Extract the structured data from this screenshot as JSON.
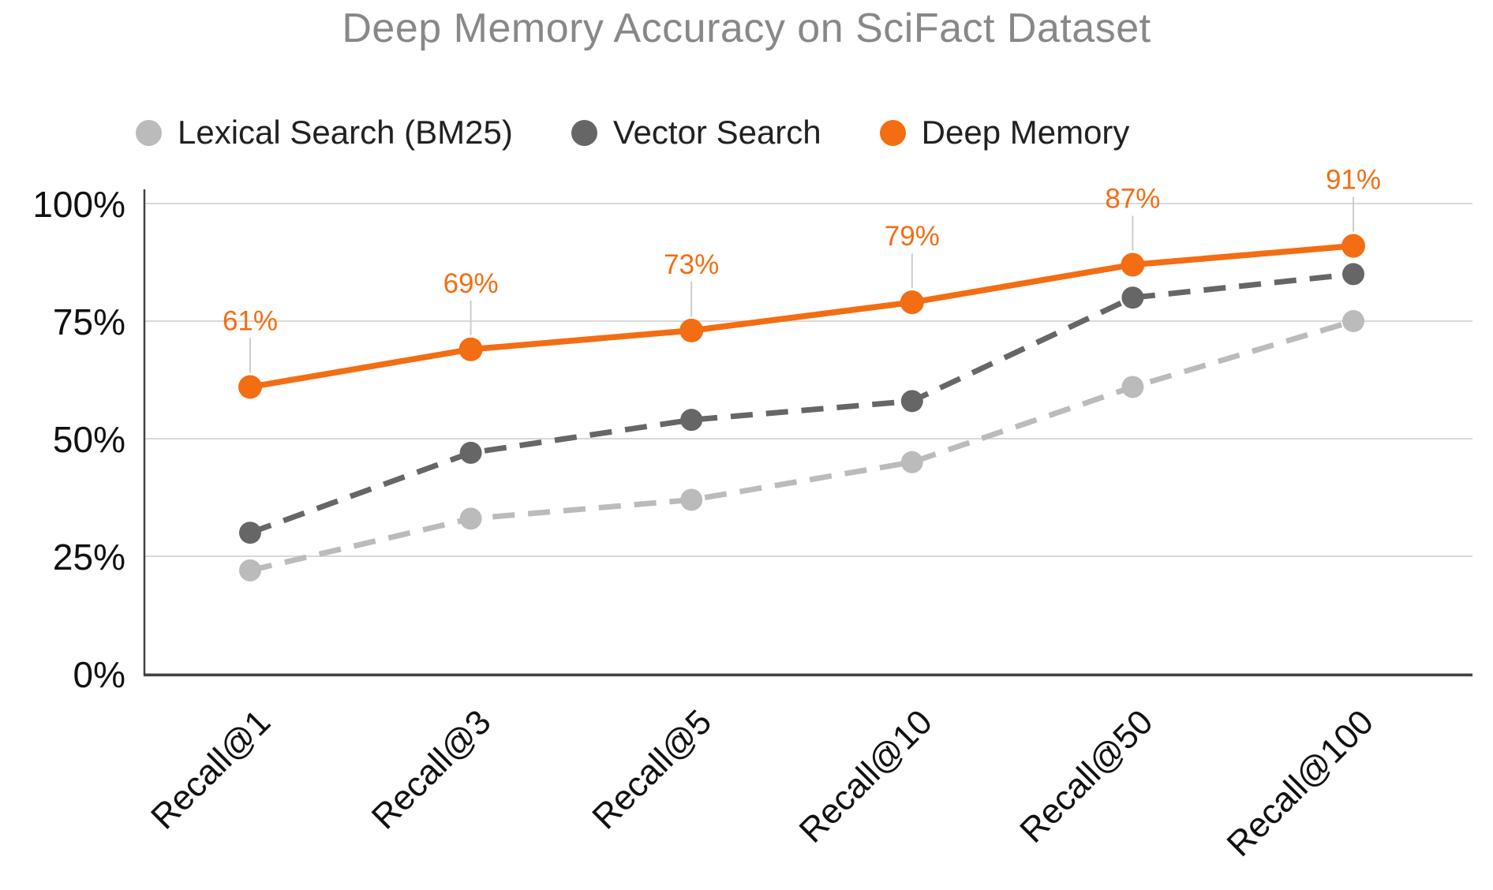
{
  "title": "Deep Memory Accuracy on SciFact Dataset",
  "chart_data": {
    "type": "line",
    "title": "Deep Memory Accuracy on SciFact Dataset",
    "xlabel": "",
    "ylabel": "",
    "categories": [
      "Recall@1",
      "Recall@3",
      "Recall@5",
      "Recall@10",
      "Recall@50",
      "Recall@100"
    ],
    "ylim": [
      0,
      100
    ],
    "y_tick_values": [
      0,
      25,
      50,
      75,
      100
    ],
    "y_tick_labels": [
      "0%",
      "25%",
      "50%",
      "75%",
      "100%"
    ],
    "grid": "horizontal",
    "legend_position": "top",
    "series": [
      {
        "name": "Lexical Search (BM25)",
        "values": [
          22,
          33,
          37,
          45,
          61,
          75
        ],
        "color": "#BBBBBB",
        "line_style": "dashed",
        "show_data_labels": false
      },
      {
        "name": "Vector Search",
        "values": [
          30,
          47,
          54,
          58,
          80,
          85
        ],
        "color": "#666666",
        "line_style": "dashed",
        "show_data_labels": false
      },
      {
        "name": "Deep Memory",
        "values": [
          61,
          69,
          73,
          79,
          87,
          91
        ],
        "color": "#F36D13",
        "line_style": "solid",
        "show_data_labels": true,
        "data_labels": [
          "61%",
          "69%",
          "73%",
          "79%",
          "87%",
          "91%"
        ]
      }
    ]
  },
  "colors": {
    "title_text": "#888888",
    "legend_text": "#212121",
    "tick_text": "#111111",
    "gridline": "#D9D9D9",
    "axis": "#424242",
    "label_leader_line": "#CCCCCC",
    "background": "#FFFFFF",
    "accent_orange": "#F36D13",
    "series_dark_gray": "#666666",
    "series_light_gray": "#BBBBBB"
  }
}
